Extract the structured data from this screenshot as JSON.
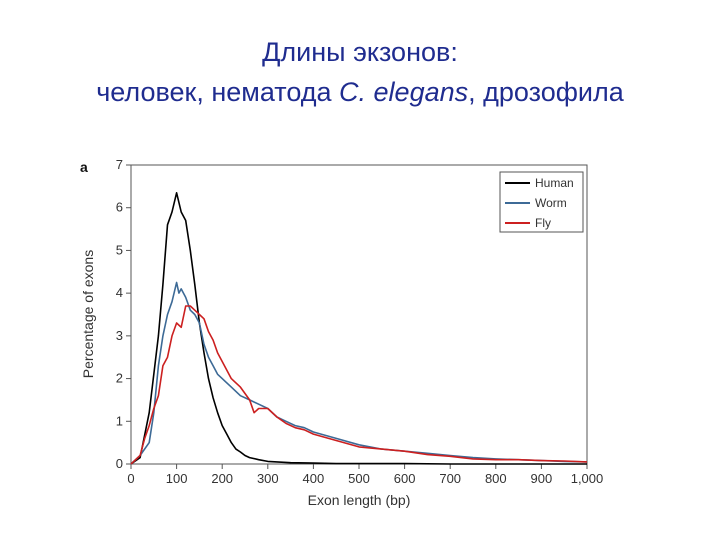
{
  "slide": {
    "title_line1": "Длины экзонов:",
    "title_line2_prefix": "человек, нематода ",
    "title_line2_italic": "C. elegans",
    "title_line2_suffix": ", дрозофила"
  },
  "chart_data": {
    "type": "line",
    "panel_label": "a",
    "xlabel": "Exon length (bp)",
    "ylabel": "Percentage of exons",
    "xlim": [
      0,
      1000
    ],
    "ylim": [
      0,
      7
    ],
    "x_ticks": [
      0,
      100,
      200,
      300,
      400,
      500,
      600,
      700,
      800,
      900,
      1000
    ],
    "x_tick_labels": [
      "0",
      "100",
      "200",
      "300",
      "400",
      "500",
      "600",
      "700",
      "800",
      "900",
      "1,000"
    ],
    "y_ticks": [
      0,
      1,
      2,
      3,
      4,
      5,
      6,
      7
    ],
    "y_tick_labels": [
      "0",
      "1",
      "2",
      "3",
      "4",
      "5",
      "6",
      "7"
    ],
    "legend_position": "top-right",
    "grid": false,
    "series": [
      {
        "name": "Human",
        "color": "#000000",
        "x": [
          0,
          20,
          40,
          60,
          70,
          80,
          90,
          100,
          110,
          120,
          130,
          140,
          150,
          160,
          170,
          180,
          190,
          200,
          210,
          220,
          230,
          240,
          250,
          260,
          280,
          300,
          350,
          400,
          450,
          500,
          600,
          700,
          800,
          900,
          1000
        ],
        "y": [
          0,
          0.15,
          1.2,
          3.0,
          4.2,
          5.6,
          5.9,
          6.35,
          5.9,
          5.7,
          5.0,
          4.2,
          3.3,
          2.6,
          2.0,
          1.55,
          1.2,
          0.9,
          0.7,
          0.5,
          0.35,
          0.28,
          0.2,
          0.15,
          0.1,
          0.06,
          0.03,
          0.02,
          0.01,
          0.01,
          0.01,
          0.0,
          0.0,
          0.0,
          0.0
        ]
      },
      {
        "name": "Worm",
        "color": "#3d6a96",
        "x": [
          0,
          20,
          40,
          50,
          60,
          70,
          80,
          90,
          100,
          105,
          110,
          120,
          130,
          140,
          150,
          160,
          170,
          180,
          190,
          200,
          220,
          240,
          260,
          280,
          300,
          320,
          340,
          360,
          380,
          400,
          450,
          500,
          550,
          600,
          650,
          700,
          750,
          800,
          850,
          900,
          950,
          1000
        ],
        "y": [
          0,
          0.2,
          0.5,
          1.2,
          2.3,
          3.0,
          3.5,
          3.8,
          4.25,
          4.0,
          4.1,
          3.9,
          3.6,
          3.5,
          3.3,
          2.8,
          2.5,
          2.3,
          2.1,
          2.0,
          1.8,
          1.6,
          1.5,
          1.4,
          1.3,
          1.1,
          1.0,
          0.9,
          0.85,
          0.75,
          0.6,
          0.45,
          0.35,
          0.3,
          0.25,
          0.2,
          0.15,
          0.12,
          0.1,
          0.08,
          0.06,
          0.05
        ]
      },
      {
        "name": "Fly",
        "color": "#cc2020",
        "x": [
          0,
          20,
          30,
          40,
          50,
          60,
          70,
          80,
          90,
          100,
          110,
          120,
          130,
          140,
          150,
          160,
          170,
          180,
          190,
          200,
          220,
          240,
          260,
          270,
          280,
          300,
          320,
          340,
          360,
          380,
          400,
          450,
          500,
          550,
          600,
          650,
          700,
          750,
          800,
          850,
          900,
          950,
          1000
        ],
        "y": [
          0,
          0.2,
          0.6,
          0.9,
          1.3,
          1.6,
          2.3,
          2.5,
          3.0,
          3.3,
          3.2,
          3.7,
          3.7,
          3.6,
          3.5,
          3.4,
          3.1,
          2.9,
          2.6,
          2.4,
          2.0,
          1.8,
          1.5,
          1.2,
          1.3,
          1.3,
          1.1,
          0.95,
          0.85,
          0.8,
          0.7,
          0.55,
          0.4,
          0.35,
          0.3,
          0.22,
          0.18,
          0.12,
          0.1,
          0.1,
          0.08,
          0.07,
          0.05
        ]
      }
    ]
  }
}
